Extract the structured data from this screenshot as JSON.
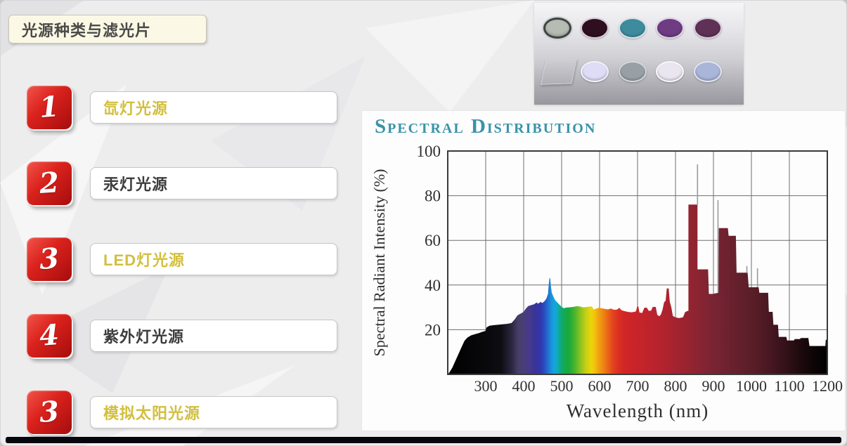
{
  "slide": {
    "title": "光源种类与滤光片",
    "items": [
      {
        "number": "1",
        "label": "氙灯光源",
        "label_color": "#d2bf3e"
      },
      {
        "number": "2",
        "label": "汞灯光源",
        "label_color": "#3d3d3d"
      },
      {
        "number": "3",
        "label": "LED灯光源",
        "label_color": "#d2bf3e"
      },
      {
        "number": "4",
        "label": "紫外灯光源",
        "label_color": "#3d3d3d"
      },
      {
        "number": "3",
        "label": "模拟太阳光源",
        "label_color": "#d2bf3e"
      }
    ],
    "accent_red": "#c00f0f",
    "badge_text_color": "#ffffff",
    "bottom_bar_color": "#06060d"
  },
  "filters_photo": {
    "row1": [
      {
        "shape": "round",
        "name": "neutral-gray-filter",
        "body": "#b6bbb4",
        "rim": "#3e4443"
      },
      {
        "shape": "round",
        "name": "dark-magenta-filter",
        "body": "#2e0f20",
        "rim": "#d9c9da"
      },
      {
        "shape": "round",
        "name": "teal-filter",
        "body": "#3e8b9e",
        "rim": "#dce4e8"
      },
      {
        "shape": "round",
        "name": "purple-filter",
        "body": "#6d3c82",
        "rim": "#e0d4e8"
      },
      {
        "shape": "round",
        "name": "plum-filter",
        "body": "#5f3157",
        "rim": "#d8cada"
      }
    ],
    "row2": [
      {
        "shape": "square",
        "name": "glass-plate",
        "body": "#b3bccb",
        "rim": "#cdd4e0"
      },
      {
        "shape": "round",
        "name": "pale-lavender-filter",
        "body": "#dedcf6",
        "rim": "#f4f2fc"
      },
      {
        "shape": "round",
        "name": "gray-blue-filter",
        "body": "#98a0a6",
        "rim": "#d4d8dc"
      },
      {
        "shape": "round",
        "name": "near-white-filter",
        "body": "#eae6f0",
        "rim": "#faf8fc"
      },
      {
        "shape": "round",
        "name": "periwinkle-filter",
        "body": "#a9b5d9",
        "rim": "#e2e6f2"
      }
    ]
  },
  "chart_data": {
    "type": "area",
    "title": "Spectral Distribution",
    "title_color": "#3a93a8",
    "xlabel": "Wavelength (nm)",
    "ylabel": "Spectral Radiant Intensity (%)",
    "xlim": [
      200,
      1200
    ],
    "ylim": [
      0,
      100
    ],
    "x_ticks": [
      300,
      400,
      500,
      600,
      700,
      800,
      900,
      1000,
      1100,
      1200
    ],
    "x_grid": [
      300,
      400,
      500,
      600,
      700,
      800,
      900,
      1000,
      1100
    ],
    "y_ticks": [
      20,
      40,
      60,
      80,
      100
    ],
    "grid": true,
    "legend": "none",
    "series_points": [
      [
        200,
        0
      ],
      [
        205,
        1
      ],
      [
        212,
        3
      ],
      [
        220,
        6
      ],
      [
        228,
        9
      ],
      [
        236,
        12
      ],
      [
        244,
        15
      ],
      [
        252,
        16.5
      ],
      [
        262,
        17.5
      ],
      [
        272,
        18
      ],
      [
        282,
        18.5
      ],
      [
        290,
        19
      ],
      [
        300,
        19.5
      ],
      [
        302,
        21
      ],
      [
        310,
        21.8
      ],
      [
        320,
        22
      ],
      [
        332,
        22.2
      ],
      [
        344,
        22.4
      ],
      [
        356,
        22.6
      ],
      [
        368,
        23
      ],
      [
        376,
        24.5
      ],
      [
        384,
        26.5
      ],
      [
        392,
        27.2
      ],
      [
        400,
        28
      ],
      [
        406,
        29.5
      ],
      [
        412,
        30.6
      ],
      [
        420,
        31
      ],
      [
        428,
        31.4
      ],
      [
        434,
        32.2
      ],
      [
        438,
        31.6
      ],
      [
        444,
        32.4
      ],
      [
        450,
        32
      ],
      [
        456,
        33
      ],
      [
        460,
        34
      ],
      [
        464,
        36
      ],
      [
        466,
        40
      ],
      [
        468,
        43
      ],
      [
        470,
        43
      ],
      [
        472,
        39
      ],
      [
        474,
        36.5
      ],
      [
        478,
        35
      ],
      [
        482,
        33.5
      ],
      [
        486,
        32.6
      ],
      [
        490,
        32
      ],
      [
        494,
        31.2
      ],
      [
        500,
        30.2
      ],
      [
        506,
        29.6
      ],
      [
        512,
        29.9
      ],
      [
        520,
        30
      ],
      [
        530,
        30.2
      ],
      [
        540,
        30.5
      ],
      [
        548,
        30.4
      ],
      [
        556,
        30
      ],
      [
        564,
        30.1
      ],
      [
        572,
        30.3
      ],
      [
        580,
        30.4
      ],
      [
        584,
        29
      ],
      [
        590,
        29.4
      ],
      [
        598,
        29.8
      ],
      [
        606,
        29.6
      ],
      [
        614,
        29.3
      ],
      [
        622,
        29.1
      ],
      [
        630,
        29.5
      ],
      [
        638,
        28.9
      ],
      [
        646,
        29
      ],
      [
        652,
        29.8
      ],
      [
        658,
        28.7
      ],
      [
        666,
        28.3
      ],
      [
        674,
        28
      ],
      [
        682,
        27.8
      ],
      [
        690,
        27.9
      ],
      [
        696,
        28.2
      ],
      [
        699,
        30.4
      ],
      [
        702,
        30.4
      ],
      [
        705,
        27.7
      ],
      [
        712,
        27.5
      ],
      [
        718,
        29.8
      ],
      [
        724,
        29.9
      ],
      [
        730,
        28.4
      ],
      [
        736,
        28.6
      ],
      [
        740,
        30.2
      ],
      [
        748,
        30.2
      ],
      [
        752,
        26.6
      ],
      [
        758,
        26
      ],
      [
        762,
        27
      ],
      [
        766,
        29
      ],
      [
        770,
        32.3
      ],
      [
        774,
        33
      ],
      [
        777,
        38.5
      ],
      [
        782,
        38.5
      ],
      [
        785,
        32.5
      ],
      [
        789,
        30
      ],
      [
        793,
        26.2
      ],
      [
        800,
        25.5
      ],
      [
        810,
        25.2
      ],
      [
        820,
        25.6
      ],
      [
        825,
        27.8
      ],
      [
        831,
        28.4
      ],
      [
        834,
        28.4
      ],
      [
        834,
        76
      ],
      [
        858,
        76
      ],
      [
        858,
        47
      ],
      [
        886,
        47
      ],
      [
        888,
        36
      ],
      [
        898,
        36
      ],
      [
        906,
        36.3
      ],
      [
        913,
        36.5
      ],
      [
        914,
        65.5
      ],
      [
        938,
        65.5
      ],
      [
        940,
        62
      ],
      [
        959,
        62
      ],
      [
        961,
        45.5
      ],
      [
        990,
        45.5
      ],
      [
        993,
        39
      ],
      [
        1019,
        39
      ],
      [
        1021,
        36.5
      ],
      [
        1044,
        36.5
      ],
      [
        1046,
        28
      ],
      [
        1056,
        28
      ],
      [
        1058,
        22.2
      ],
      [
        1070,
        22.2
      ],
      [
        1072,
        16.8
      ],
      [
        1092,
        16.8
      ],
      [
        1094,
        15.2
      ],
      [
        1112,
        15.2
      ],
      [
        1114,
        15.8
      ],
      [
        1128,
        15.8
      ],
      [
        1130,
        16.3
      ],
      [
        1150,
        16.3
      ],
      [
        1153,
        12.7
      ],
      [
        1195,
        12.7
      ],
      [
        1196,
        15.5
      ],
      [
        1200,
        15.5
      ]
    ],
    "spike_lines": [
      {
        "nm": 858,
        "base": 76,
        "top": 94
      },
      {
        "nm": 912,
        "base": 36.5,
        "top": 78
      },
      {
        "nm": 988,
        "base": 45.5,
        "top": 48.5
      },
      {
        "nm": 1016,
        "base": 39,
        "top": 47.5
      }
    ],
    "spectrum_stops": [
      [
        200,
        "#000000"
      ],
      [
        340,
        "#0d0d12"
      ],
      [
        368,
        "#2a2640"
      ],
      [
        385,
        "#473e66"
      ],
      [
        400,
        "#4a3d78"
      ],
      [
        415,
        "#453a8c"
      ],
      [
        430,
        "#3a3399"
      ],
      [
        445,
        "#3037ad"
      ],
      [
        455,
        "#2a4fc0"
      ],
      [
        465,
        "#2173d2"
      ],
      [
        472,
        "#1b8fd8"
      ],
      [
        480,
        "#13a5de"
      ],
      [
        488,
        "#10aac2"
      ],
      [
        495,
        "#10a98c"
      ],
      [
        505,
        "#12aa56"
      ],
      [
        520,
        "#1ba93a"
      ],
      [
        535,
        "#4cb52c"
      ],
      [
        550,
        "#8ec321"
      ],
      [
        565,
        "#c9d013"
      ],
      [
        578,
        "#ecd60b"
      ],
      [
        588,
        "#f2c00d"
      ],
      [
        598,
        "#f0a011"
      ],
      [
        610,
        "#ee8414"
      ],
      [
        622,
        "#e96418"
      ],
      [
        635,
        "#e2441d"
      ],
      [
        650,
        "#da2f22"
      ],
      [
        665,
        "#d22626"
      ],
      [
        690,
        "#ca2429"
      ],
      [
        730,
        "#bf232c"
      ],
      [
        770,
        "#b0232e"
      ],
      [
        810,
        "#a0232f"
      ],
      [
        850,
        "#8f2431"
      ],
      [
        890,
        "#7d2432"
      ],
      [
        930,
        "#6f2231"
      ],
      [
        970,
        "#63202c"
      ],
      [
        1010,
        "#571d27"
      ],
      [
        1050,
        "#471722"
      ],
      [
        1090,
        "#331118"
      ],
      [
        1130,
        "#1d0a0d"
      ],
      [
        1170,
        "#0b0405"
      ],
      [
        1200,
        "#000000"
      ]
    ]
  }
}
